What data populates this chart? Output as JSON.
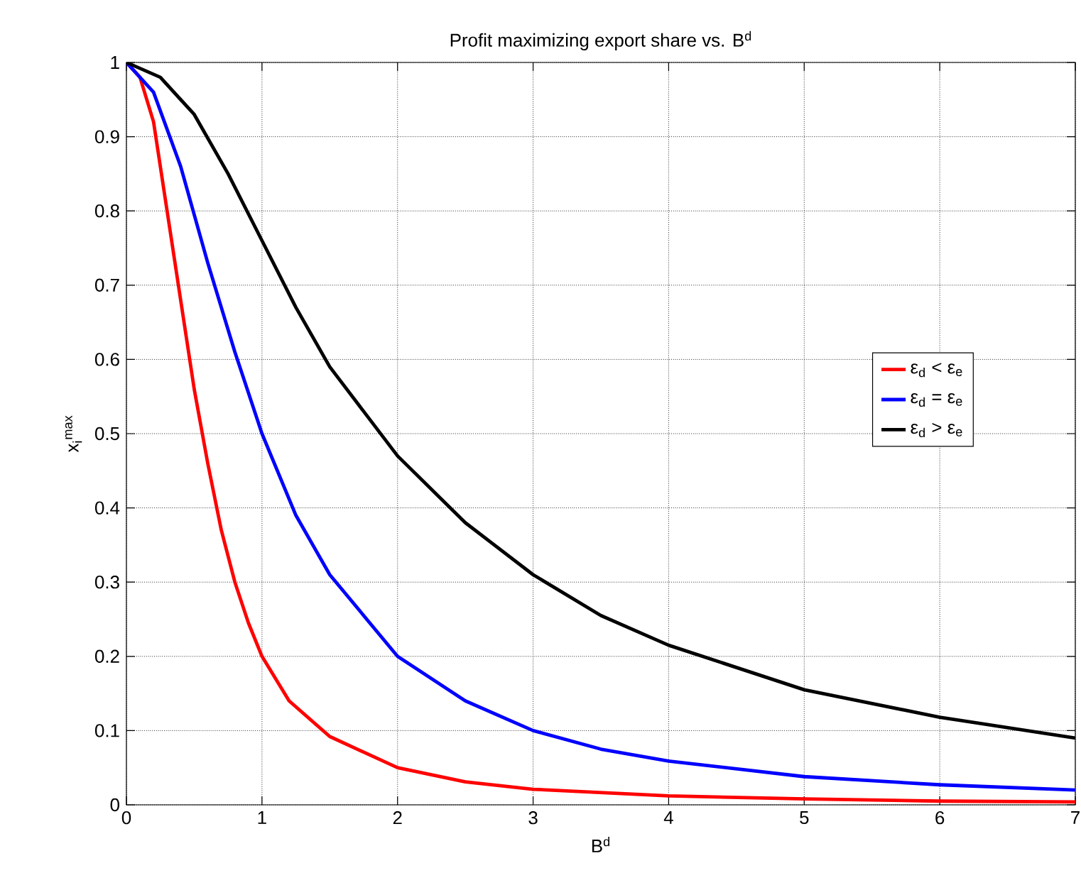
{
  "chart_data": {
    "type": "line",
    "title": "Profit maximizing export share vs. B$^{d}$",
    "xlabel": "B$^{d}$",
    "ylabel": "x$_{i}$$^{max}$",
    "xlim": [
      0,
      7
    ],
    "ylim": [
      0,
      1
    ],
    "xticks": [
      0,
      1,
      2,
      3,
      4,
      5,
      6,
      7
    ],
    "yticks": [
      0,
      0.1,
      0.2,
      0.3,
      0.4,
      0.5,
      0.6,
      0.7,
      0.8,
      0.9,
      1
    ],
    "grid": true,
    "legend": "right",
    "line_style": "solid",
    "marker": "none",
    "series": [
      {
        "name": "ε$_{d}$ < ε$_{e}$",
        "color": "#ff0000",
        "x": [
          0,
          0.1,
          0.2,
          0.3,
          0.4,
          0.5,
          0.6,
          0.7,
          0.8,
          0.9,
          1,
          1.2,
          1.5,
          2,
          2.5,
          3,
          4,
          5,
          6,
          7
        ],
        "values": [
          1,
          0.98,
          0.92,
          0.8,
          0.68,
          0.56,
          0.46,
          0.37,
          0.3,
          0.245,
          0.2,
          0.14,
          0.092,
          0.05,
          0.031,
          0.021,
          0.012,
          0.008,
          0.005,
          0.004
        ]
      },
      {
        "name": "ε$_{d}$ = ε$_{e}$",
        "color": "#0000ff",
        "x": [
          0,
          0.2,
          0.4,
          0.6,
          0.8,
          1,
          1.25,
          1.5,
          2,
          2.5,
          3,
          3.5,
          4,
          5,
          6,
          7
        ],
        "values": [
          1,
          0.96,
          0.86,
          0.73,
          0.61,
          0.5,
          0.39,
          0.31,
          0.2,
          0.14,
          0.1,
          0.075,
          0.059,
          0.038,
          0.027,
          0.02
        ]
      },
      {
        "name": "ε$_{d}$ > ε$_{e}$",
        "color": "#000000",
        "x": [
          0,
          0.25,
          0.5,
          0.75,
          1,
          1.25,
          1.5,
          2,
          2.5,
          3,
          3.5,
          4,
          5,
          6,
          7
        ],
        "values": [
          1,
          0.98,
          0.93,
          0.85,
          0.76,
          0.67,
          0.59,
          0.47,
          0.38,
          0.31,
          0.255,
          0.215,
          0.155,
          0.118,
          0.09
        ]
      }
    ]
  }
}
